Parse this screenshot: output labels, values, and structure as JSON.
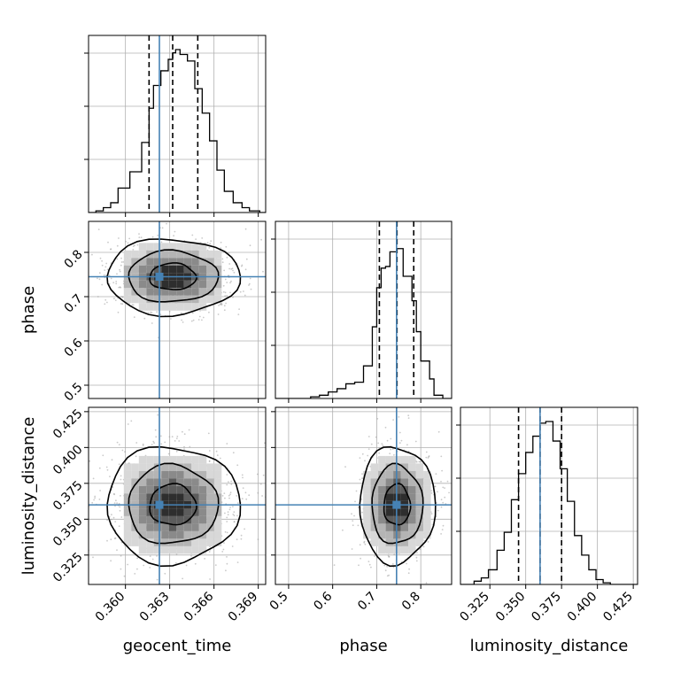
{
  "chart_data": {
    "type": "corner",
    "parameters": [
      {
        "name": "geocent_time",
        "label": "geocent_time",
        "range": [
          0.3575,
          0.3695
        ],
        "ticks": [
          0.36,
          0.363,
          0.366,
          0.369
        ],
        "tick_labels": [
          "0.360",
          "0.363",
          "0.366",
          "0.369"
        ],
        "truth": 0.3623,
        "quantiles": [
          0.3616,
          0.3632,
          0.3649
        ],
        "hist_edges": [
          0.3575,
          0.358,
          0.3585,
          0.359,
          0.3595,
          0.3603,
          0.3611,
          0.3616,
          0.3619,
          0.3624,
          0.3629,
          0.3632,
          0.3634,
          0.3637,
          0.3642,
          0.3647,
          0.3652,
          0.3657,
          0.3662,
          0.3667,
          0.3673,
          0.3679,
          0.3684,
          0.3691,
          0.3695
        ],
        "hist_counts": [
          0,
          0.01,
          0.03,
          0.06,
          0.15,
          0.25,
          0.43,
          0.64,
          0.78,
          0.87,
          0.94,
          0.98,
          1.0,
          0.97,
          0.93,
          0.76,
          0.61,
          0.44,
          0.26,
          0.13,
          0.06,
          0.03,
          0.01,
          0
        ]
      },
      {
        "name": "phase",
        "label": "phase",
        "range": [
          0.47,
          0.87
        ],
        "ticks": [
          0.5,
          0.6,
          0.7,
          0.8
        ],
        "tick_labels": [
          "0.5",
          "0.6",
          "0.7",
          "0.8"
        ],
        "truth": 0.745,
        "quantiles": [
          0.706,
          0.746,
          0.784
        ],
        "hist_edges": [
          0.47,
          0.55,
          0.57,
          0.59,
          0.61,
          0.63,
          0.65,
          0.67,
          0.69,
          0.7,
          0.71,
          0.72,
          0.73,
          0.745,
          0.76,
          0.78,
          0.79,
          0.8,
          0.82,
          0.83,
          0.85,
          0.87
        ],
        "hist_counts": [
          0,
          0.01,
          0.02,
          0.04,
          0.06,
          0.09,
          0.1,
          0.2,
          0.44,
          0.68,
          0.8,
          0.81,
          0.9,
          0.92,
          0.75,
          0.6,
          0.41,
          0.23,
          0.12,
          0.02,
          0
        ],
        "row_ticks": [
          0.5,
          0.6,
          0.7,
          0.8
        ],
        "row_tick_labels": [
          "0.5",
          "0.6",
          "0.7",
          "0.8"
        ]
      },
      {
        "name": "luminosity_distance",
        "label": "luminosity_distance",
        "range": [
          0.3045,
          0.428
        ],
        "ticks": [
          0.325,
          0.35,
          0.375,
          0.4,
          0.425
        ],
        "tick_labels": [
          "0.325",
          "0.350",
          "0.375",
          "0.400",
          "0.425"
        ],
        "truth": 0.36,
        "quantiles": [
          0.345,
          0.36,
          0.375
        ],
        "hist_edges": [
          0.3045,
          0.314,
          0.319,
          0.324,
          0.33,
          0.335,
          0.34,
          0.345,
          0.35,
          0.355,
          0.36,
          0.364,
          0.369,
          0.374,
          0.379,
          0.384,
          0.389,
          0.394,
          0.399,
          0.404,
          0.409,
          0.42,
          0.428
        ],
        "hist_counts": [
          0,
          0.02,
          0.04,
          0.09,
          0.21,
          0.32,
          0.52,
          0.68,
          0.81,
          0.91,
          0.99,
          1.0,
          0.88,
          0.71,
          0.51,
          0.3,
          0.18,
          0.09,
          0.03,
          0.01,
          0,
          0
        ],
        "row_ticks": [
          0.325,
          0.35,
          0.375,
          0.4,
          0.425
        ],
        "row_tick_labels": [
          "0.325",
          "0.350",
          "0.375",
          "0.400",
          "0.425"
        ]
      }
    ],
    "pairs": [
      {
        "x": "geocent_time",
        "y": "phase",
        "center": [
          0.3632,
          0.745
        ],
        "sigma": [
          0.0021,
          0.04
        ],
        "levels": 3
      },
      {
        "x": "geocent_time",
        "y": "luminosity_distance",
        "center": [
          0.3632,
          0.36
        ],
        "sigma": [
          0.0021,
          0.019
        ],
        "levels": 3
      },
      {
        "x": "phase",
        "y": "luminosity_distance",
        "center": [
          0.746,
          0.36
        ],
        "sigma": [
          0.04,
          0.019
        ],
        "levels": 3
      }
    ],
    "colors": {
      "truth": "#4682b4",
      "contour": "#000000",
      "scatter": "#9e9e9e",
      "grid": "#b0b0b0"
    },
    "grid": true
  }
}
